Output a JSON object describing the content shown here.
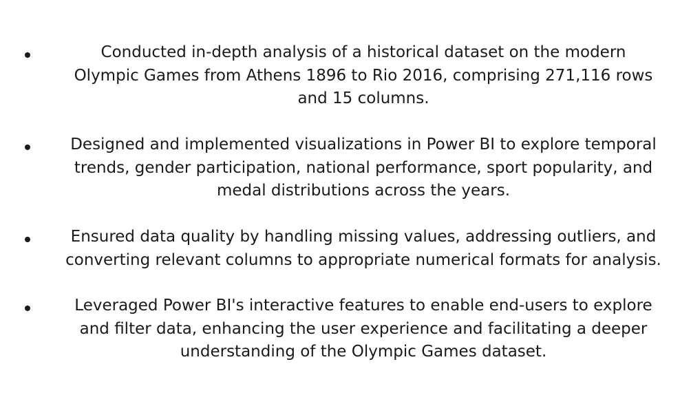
{
  "bullets": [
    {
      "lines": [
        "Conducted in-depth analysis of a historical dataset on the modern",
        "Olympic Games from Athens 1896 to Rio 2016, comprising 271,116 rows",
        "and 15 columns."
      ]
    },
    {
      "lines": [
        "Designed and implemented visualizations in Power BI to explore temporal",
        "trends, gender participation, national performance, sport popularity, and",
        "medal distributions across the years."
      ]
    },
    {
      "lines": [
        "Ensured data quality by handling missing values, addressing outliers, and",
        "converting relevant columns to appropriate numerical formats for analysis."
      ]
    },
    {
      "lines": [
        "Leveraged Power BI's interactive features to enable end-users to explore",
        "and filter data, enhancing the user experience and facilitating a deeper",
        "understanding of the Olympic Games dataset."
      ]
    }
  ]
}
